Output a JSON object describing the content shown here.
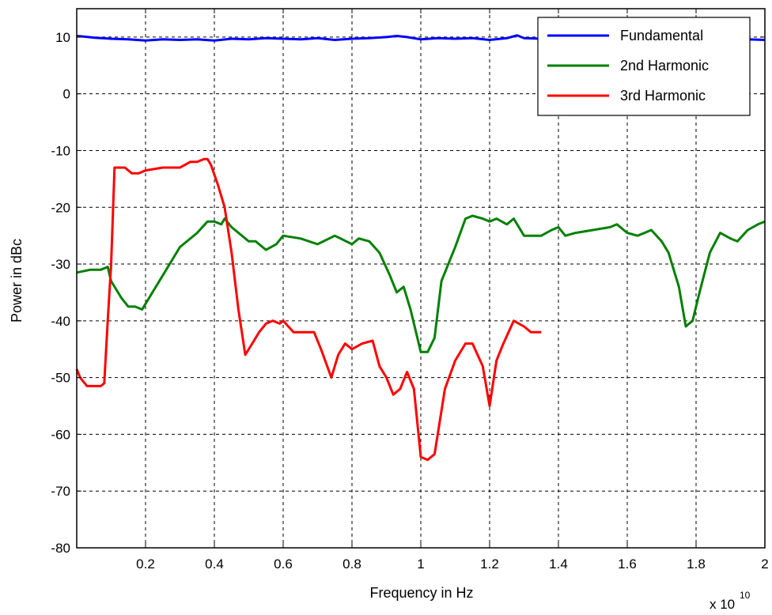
{
  "chart_data": {
    "type": "line",
    "xlabel": "Frequency in Hz",
    "ylabel": "Power in dBc",
    "x_exponent_base": "x 10",
    "x_exponent_power": "10",
    "xlim": [
      0,
      2
    ],
    "ylim": [
      -80,
      15
    ],
    "xticks": [
      0.2,
      0.4,
      0.6,
      0.8,
      1,
      1.2,
      1.4,
      1.6,
      1.8,
      2
    ],
    "yticks": [
      10,
      0,
      -10,
      -20,
      -30,
      -40,
      -50,
      -60,
      -70,
      -80
    ],
    "grid": true,
    "legend_position": "top-right",
    "series": [
      {
        "name": "Fundamental",
        "color": "#0000ff",
        "points": [
          [
            0,
            10.2
          ],
          [
            0.02,
            10.1
          ],
          [
            0.05,
            9.9
          ],
          [
            0.1,
            9.7
          ],
          [
            0.15,
            9.6
          ],
          [
            0.2,
            9.4
          ],
          [
            0.25,
            9.6
          ],
          [
            0.3,
            9.5
          ],
          [
            0.35,
            9.6
          ],
          [
            0.4,
            9.4
          ],
          [
            0.45,
            9.7
          ],
          [
            0.5,
            9.6
          ],
          [
            0.55,
            9.8
          ],
          [
            0.6,
            9.7
          ],
          [
            0.65,
            9.6
          ],
          [
            0.7,
            9.8
          ],
          [
            0.75,
            9.5
          ],
          [
            0.8,
            9.7
          ],
          [
            0.85,
            9.8
          ],
          [
            0.9,
            10.0
          ],
          [
            0.93,
            10.2
          ],
          [
            0.96,
            10.0
          ],
          [
            1.0,
            9.6
          ],
          [
            1.05,
            9.8
          ],
          [
            1.1,
            9.7
          ],
          [
            1.15,
            9.8
          ],
          [
            1.2,
            9.5
          ],
          [
            1.25,
            9.8
          ],
          [
            1.28,
            10.3
          ],
          [
            1.3,
            9.8
          ],
          [
            1.35,
            9.7
          ],
          [
            1.4,
            9.8
          ],
          [
            1.5,
            9.7
          ],
          [
            1.6,
            9.8
          ],
          [
            1.7,
            9.6
          ],
          [
            1.8,
            9.8
          ],
          [
            1.9,
            9.7
          ],
          [
            1.95,
            9.6
          ],
          [
            2.0,
            9.5
          ]
        ]
      },
      {
        "name": "2nd Harmonic",
        "color": "#008000",
        "points": [
          [
            0,
            -31.5
          ],
          [
            0.04,
            -31
          ],
          [
            0.07,
            -31
          ],
          [
            0.09,
            -30.5
          ],
          [
            0.1,
            -33
          ],
          [
            0.13,
            -36
          ],
          [
            0.15,
            -37.5
          ],
          [
            0.17,
            -37.5
          ],
          [
            0.19,
            -38
          ],
          [
            0.2,
            -37
          ],
          [
            0.25,
            -32
          ],
          [
            0.3,
            -27
          ],
          [
            0.35,
            -24.5
          ],
          [
            0.38,
            -22.5
          ],
          [
            0.4,
            -22.5
          ],
          [
            0.42,
            -23
          ],
          [
            0.43,
            -22
          ],
          [
            0.45,
            -23.5
          ],
          [
            0.5,
            -26
          ],
          [
            0.52,
            -26
          ],
          [
            0.55,
            -27.5
          ],
          [
            0.58,
            -26.5
          ],
          [
            0.6,
            -25
          ],
          [
            0.65,
            -25.5
          ],
          [
            0.7,
            -26.5
          ],
          [
            0.75,
            -25
          ],
          [
            0.8,
            -26.5
          ],
          [
            0.82,
            -25.5
          ],
          [
            0.85,
            -26
          ],
          [
            0.88,
            -28
          ],
          [
            0.91,
            -32
          ],
          [
            0.93,
            -35
          ],
          [
            0.95,
            -34
          ],
          [
            0.97,
            -38
          ],
          [
            1.0,
            -45.5
          ],
          [
            1.02,
            -45.5
          ],
          [
            1.04,
            -43
          ],
          [
            1.06,
            -33
          ],
          [
            1.1,
            -27
          ],
          [
            1.13,
            -22
          ],
          [
            1.15,
            -21.5
          ],
          [
            1.18,
            -22
          ],
          [
            1.2,
            -22.5
          ],
          [
            1.22,
            -22
          ],
          [
            1.25,
            -23
          ],
          [
            1.27,
            -22
          ],
          [
            1.3,
            -25
          ],
          [
            1.35,
            -25
          ],
          [
            1.38,
            -24
          ],
          [
            1.4,
            -23.5
          ],
          [
            1.42,
            -25
          ],
          [
            1.45,
            -24.5
          ],
          [
            1.5,
            -24
          ],
          [
            1.55,
            -23.5
          ],
          [
            1.57,
            -23
          ],
          [
            1.6,
            -24.5
          ],
          [
            1.63,
            -25
          ],
          [
            1.65,
            -24.5
          ],
          [
            1.67,
            -24
          ],
          [
            1.7,
            -26
          ],
          [
            1.72,
            -28
          ],
          [
            1.75,
            -34
          ],
          [
            1.77,
            -41
          ],
          [
            1.79,
            -40
          ],
          [
            1.81,
            -35
          ],
          [
            1.84,
            -28
          ],
          [
            1.87,
            -24.5
          ],
          [
            1.9,
            -25.5
          ],
          [
            1.92,
            -26
          ],
          [
            1.95,
            -24
          ],
          [
            1.98,
            -23
          ],
          [
            2.0,
            -22.5
          ]
        ]
      },
      {
        "name": "3rd Harmonic",
        "color": "#ff0000",
        "points": [
          [
            0,
            -48.5
          ],
          [
            0.01,
            -50
          ],
          [
            0.03,
            -51.5
          ],
          [
            0.05,
            -51.5
          ],
          [
            0.07,
            -51.5
          ],
          [
            0.08,
            -51
          ],
          [
            0.09,
            -40
          ],
          [
            0.1,
            -30
          ],
          [
            0.11,
            -13
          ],
          [
            0.12,
            -13
          ],
          [
            0.14,
            -13
          ],
          [
            0.16,
            -14
          ],
          [
            0.18,
            -14
          ],
          [
            0.2,
            -13.5
          ],
          [
            0.25,
            -13
          ],
          [
            0.3,
            -13
          ],
          [
            0.33,
            -12
          ],
          [
            0.35,
            -12
          ],
          [
            0.37,
            -11.5
          ],
          [
            0.38,
            -11.5
          ],
          [
            0.39,
            -12.5
          ],
          [
            0.41,
            -16
          ],
          [
            0.43,
            -20
          ],
          [
            0.45,
            -28
          ],
          [
            0.47,
            -38
          ],
          [
            0.49,
            -46
          ],
          [
            0.51,
            -44
          ],
          [
            0.53,
            -42
          ],
          [
            0.55,
            -40.5
          ],
          [
            0.57,
            -40
          ],
          [
            0.59,
            -40.5
          ],
          [
            0.6,
            -40
          ],
          [
            0.63,
            -42
          ],
          [
            0.66,
            -42
          ],
          [
            0.69,
            -42
          ],
          [
            0.71,
            -45
          ],
          [
            0.74,
            -50
          ],
          [
            0.76,
            -46
          ],
          [
            0.78,
            -44
          ],
          [
            0.8,
            -45
          ],
          [
            0.83,
            -44
          ],
          [
            0.86,
            -43.5
          ],
          [
            0.88,
            -48
          ],
          [
            0.9,
            -50
          ],
          [
            0.92,
            -53
          ],
          [
            0.94,
            -52
          ],
          [
            0.96,
            -49
          ],
          [
            0.98,
            -52
          ],
          [
            1.0,
            -64
          ],
          [
            1.02,
            -64.5
          ],
          [
            1.04,
            -63.5
          ],
          [
            1.07,
            -52
          ],
          [
            1.1,
            -47
          ],
          [
            1.13,
            -44
          ],
          [
            1.15,
            -44
          ],
          [
            1.18,
            -48
          ],
          [
            1.2,
            -55
          ],
          [
            1.22,
            -47
          ],
          [
            1.24,
            -44
          ],
          [
            1.27,
            -40
          ],
          [
            1.3,
            -41
          ],
          [
            1.32,
            -42
          ],
          [
            1.35,
            -42
          ]
        ]
      }
    ]
  }
}
